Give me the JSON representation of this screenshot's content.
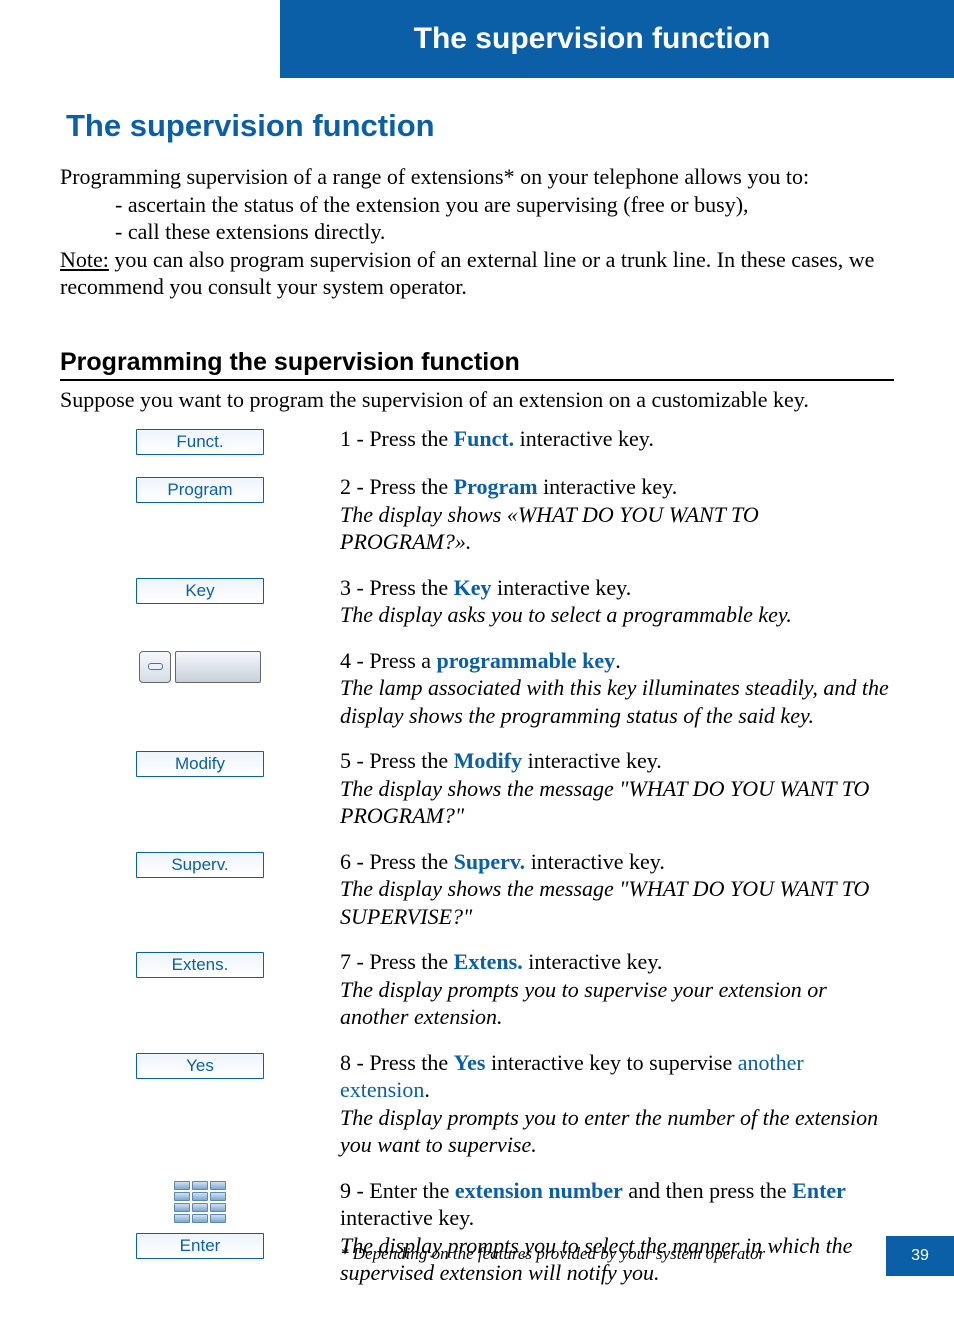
{
  "header": {
    "title": "The supervision function"
  },
  "title": "The supervision function",
  "intro": {
    "line1": "Programming supervision of a range of extensions* on your telephone allows you to:",
    "bullet1": "- ascertain the status of the extension you are supervising (free or busy),",
    "bullet2": "- call these extensions directly.",
    "note_label": "Note:",
    "note_rest": " you can also program supervision of an external line or a trunk line. In these cases, we recommend you consult your system operator."
  },
  "section": {
    "heading": "Programming the supervision function",
    "sub": "Suppose you want to program the supervision of an extension on a customizable key."
  },
  "keys": {
    "funct": "Funct.",
    "program": "Program",
    "key": "Key",
    "modify": "Modify",
    "superv": "Superv.",
    "extens": "Extens.",
    "yes": "Yes",
    "enter": "Enter"
  },
  "steps": {
    "s1": {
      "pre": "1 - Press the ",
      "kw": "Funct.",
      "post": " interactive key."
    },
    "s2": {
      "pre": "2 - Press the ",
      "kw": "Program",
      "post": " interactive key.",
      "ital": "The display shows «WHAT DO YOU WANT TO PROGRAM?»."
    },
    "s3": {
      "pre": "3 - Press the ",
      "kw": "Key",
      "post": " interactive key.",
      "ital": "The display asks you to select a programmable key."
    },
    "s4": {
      "pre": "4 - Press a ",
      "kw": "programmable key",
      "post": ".",
      "ital": "The lamp associated with this key illuminates steadily, and the display shows the programming status of the said key."
    },
    "s5": {
      "pre": "5 - Press the ",
      "kw": "Modify",
      "post": " interactive key.",
      "ital": "The display shows the message \"WHAT DO YOU WANT TO PROGRAM?\""
    },
    "s6": {
      "pre": "6 - Press the ",
      "kw": "Superv.",
      "post": " interactive key.",
      "ital": "The display shows the message \"WHAT DO YOU WANT TO SUPERVISE?\""
    },
    "s7": {
      "pre": "7 - Press the ",
      "kw": "Extens.",
      "post": " interactive key.",
      "ital": "The display prompts you to supervise your extension or another extension."
    },
    "s8": {
      "pre": "8 - Press the ",
      "kw": "Yes",
      "post": " interactive key to supervise ",
      "link": "another extension",
      "post2": ".",
      "ital": "The display prompts you to enter the number of the extension you want to supervise."
    },
    "s9": {
      "pre": "9 - Enter the ",
      "kw1": "extension number",
      "mid": " and then press the ",
      "kw2": "Enter",
      "post": " interactive key.",
      "ital": "The display prompts you to select the manner in which the supervised extension will notify you."
    }
  },
  "footnote": "* Depending on the features provided by your system operator",
  "page_number": "39"
}
